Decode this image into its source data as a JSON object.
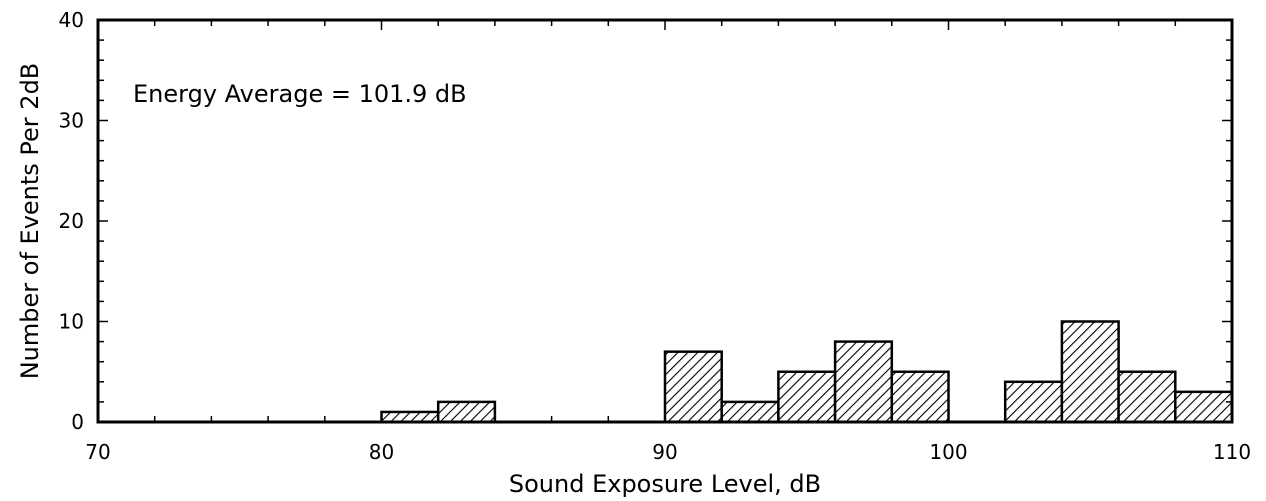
{
  "chart_data": {
    "type": "bar",
    "title": "",
    "xlabel": "Sound Exposure Level, dB",
    "ylabel": "Number of Events Per 2dB",
    "annotation": "Energy Average = 101.9 dB",
    "xlim": [
      70,
      110
    ],
    "ylim": [
      0,
      40
    ],
    "xticks": [
      70,
      80,
      90,
      100,
      110
    ],
    "yticks": [
      0,
      10,
      20,
      30,
      40
    ],
    "bin_width": 2,
    "grid": false,
    "bar_fill": "diagonal-hatch",
    "bins": [
      {
        "x0": 80,
        "x1": 82,
        "count": 1
      },
      {
        "x0": 82,
        "x1": 84,
        "count": 2
      },
      {
        "x0": 90,
        "x1": 92,
        "count": 7
      },
      {
        "x0": 92,
        "x1": 94,
        "count": 2
      },
      {
        "x0": 94,
        "x1": 96,
        "count": 5
      },
      {
        "x0": 96,
        "x1": 98,
        "count": 8
      },
      {
        "x0": 98,
        "x1": 100,
        "count": 5
      },
      {
        "x0": 102,
        "x1": 104,
        "count": 4
      },
      {
        "x0": 104,
        "x1": 106,
        "count": 10
      },
      {
        "x0": 106,
        "x1": 108,
        "count": 5
      },
      {
        "x0": 108,
        "x1": 110,
        "count": 3
      }
    ]
  }
}
